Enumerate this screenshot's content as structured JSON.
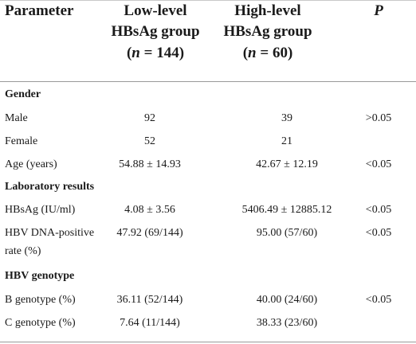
{
  "header": {
    "parameter": "Parameter",
    "low_line1": "Low-level",
    "low_line2": "HBsAg group",
    "low_n_open": "(",
    "low_n_var": "n",
    "low_n_rest": " = 144)",
    "high_line1": "High-level",
    "high_line2": "HBsAg group",
    "high_n_open": "(",
    "high_n_var": "n",
    "high_n_rest": " = 60)",
    "p": "P"
  },
  "sections": {
    "gender": "Gender",
    "lab": "Laboratory results",
    "genotype": "HBV genotype"
  },
  "rows": [
    {
      "param": "Male",
      "low": "92",
      "high": "39",
      "p": ">0.05"
    },
    {
      "param": "Female",
      "low": "52",
      "high": "21",
      "p": ""
    },
    {
      "param": "Age (years)",
      "low": "54.88 ± 14.93",
      "high": "42.67 ± 12.19",
      "p": "<0.05"
    },
    {
      "param": "HBsAg (IU/ml)",
      "low": "4.08 ± 3.56",
      "high": "5406.49 ± 12885.12",
      "p": "<0.05"
    },
    {
      "param": "HBV DNA-positive",
      "param2": "rate (%)",
      "low": "47.92 (69/144)",
      "high": "95.00 (57/60)",
      "p": "<0.05"
    },
    {
      "param": "B genotype (%)",
      "low": "36.11 (52/144)",
      "high": "40.00 (24/60)",
      "p": "<0.05"
    },
    {
      "param": "C genotype (%)",
      "low": "7.64 (11/144)",
      "high": "38.33 (23/60)",
      "p": ""
    }
  ]
}
